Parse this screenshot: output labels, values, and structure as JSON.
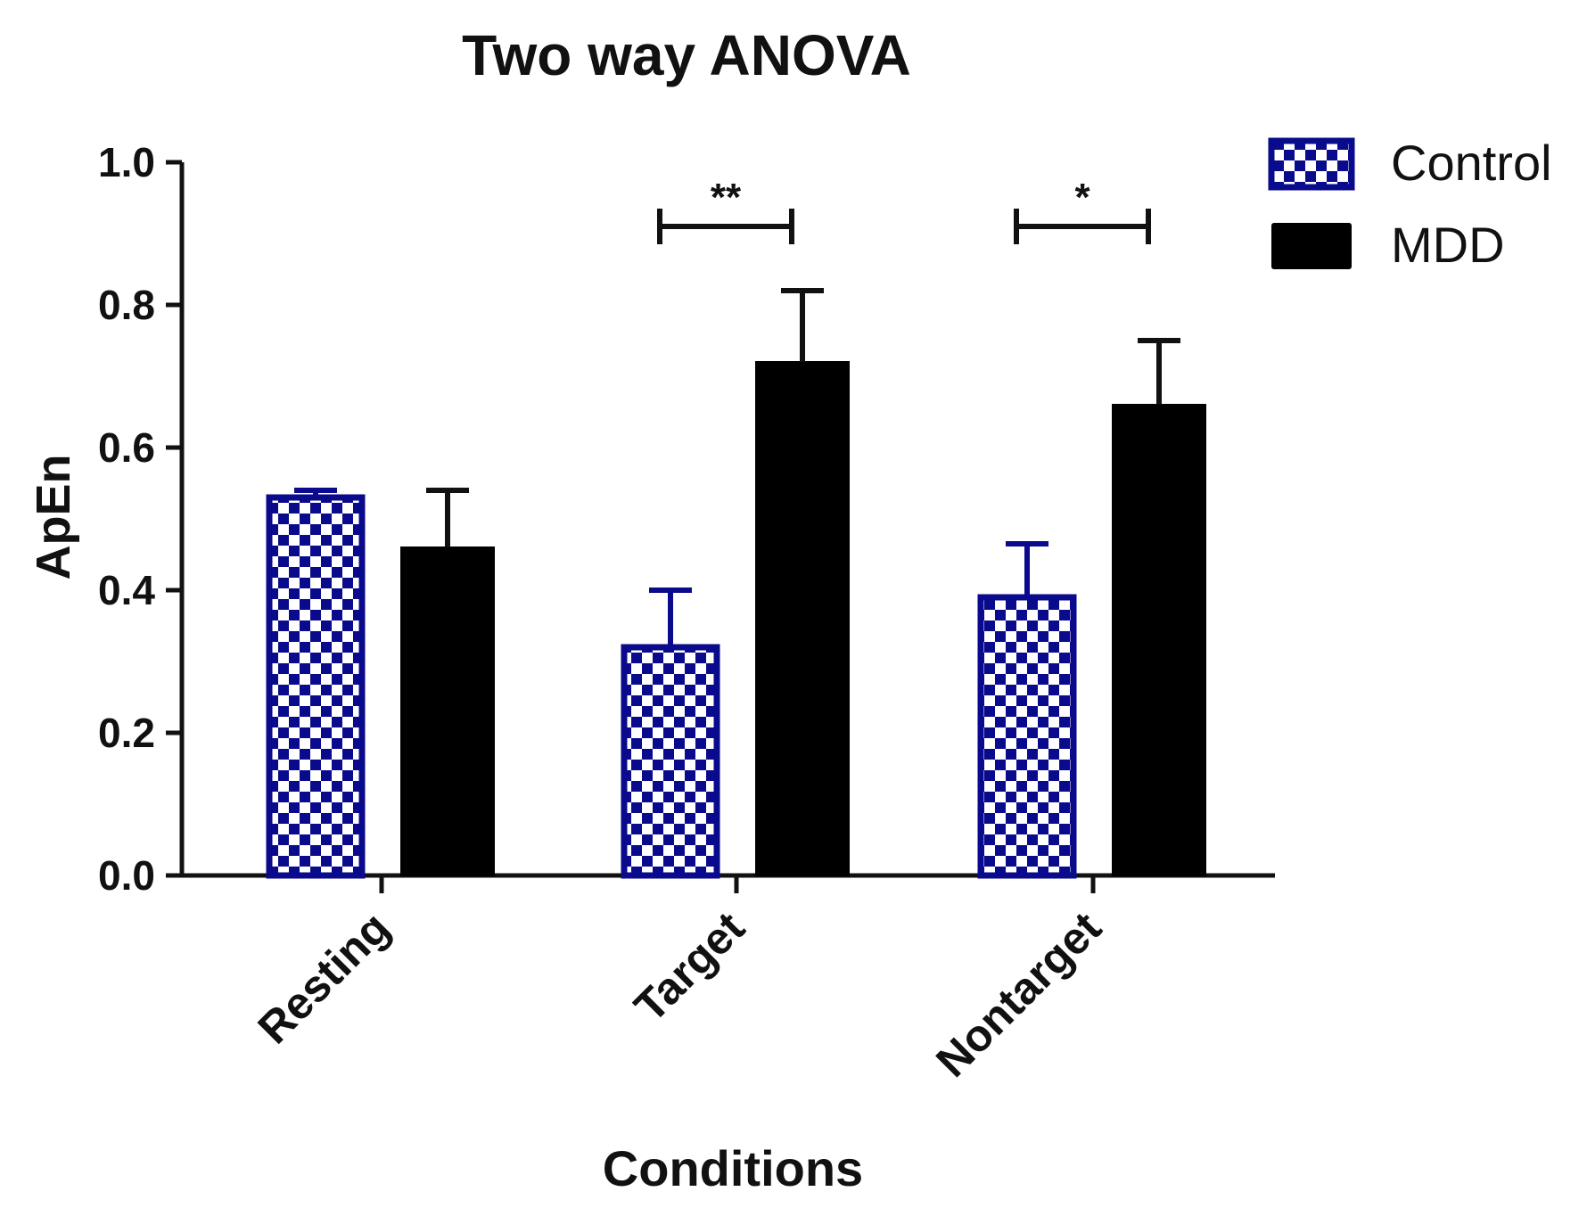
{
  "chart_data": {
    "type": "bar",
    "title": "Two way ANOVA",
    "xlabel": "Conditions",
    "ylabel": "ApEn",
    "ylim": [
      0,
      1.0
    ],
    "yticks": [
      "0.0",
      "0.2",
      "0.4",
      "0.6",
      "0.8",
      "1.0"
    ],
    "ytick_values": [
      0,
      0.2,
      0.4,
      0.6,
      0.8,
      1.0
    ],
    "categories": [
      "Resting",
      "Target",
      "Nontarget"
    ],
    "series": [
      {
        "name": "Control",
        "values": [
          0.53,
          0.32,
          0.39
        ],
        "errors": [
          0.01,
          0.08,
          0.075
        ],
        "pattern": "checkered",
        "color": "#0a0a8c"
      },
      {
        "name": "MDD",
        "values": [
          0.46,
          0.72,
          0.66
        ],
        "errors": [
          0.08,
          0.1,
          0.09
        ],
        "pattern": "solid",
        "color": "#000000"
      }
    ],
    "significance": [
      {
        "category": "Target",
        "label": "**",
        "level": 0.91
      },
      {
        "category": "Nontarget",
        "label": "*",
        "level": 0.91
      }
    ],
    "legend": {
      "position": "top-right",
      "entries": [
        "Control",
        "MDD"
      ]
    },
    "grid": false
  }
}
